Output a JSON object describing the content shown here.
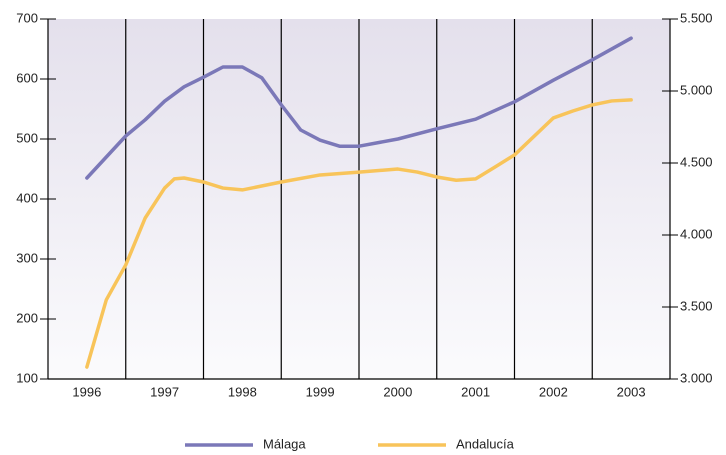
{
  "chart_data": {
    "type": "line",
    "xticks": [
      1996,
      1997,
      1998,
      1999,
      2000,
      2001,
      2002,
      2003
    ],
    "xlim": [
      1995.5,
      2003.5
    ],
    "ylim": [
      100,
      700
    ],
    "yticks": [
      100,
      200,
      300,
      400,
      500,
      600,
      700
    ],
    "y2lim": [
      3000,
      5500
    ],
    "y2ticks": [
      {
        "value": 3000,
        "label": "3.000"
      },
      {
        "value": 3500,
        "label": "3.500"
      },
      {
        "value": 4000,
        "label": "4.000"
      },
      {
        "value": 4500,
        "label": "4.500"
      },
      {
        "value": 5000,
        "label": "5.000"
      },
      {
        "value": 5500,
        "label": "5.500"
      }
    ],
    "legend": "bottom",
    "series": [
      {
        "name": "Málaga",
        "color": "#7b78b8",
        "x": [
          1996,
          1996.5,
          1996.75,
          1997,
          1997.25,
          1997.5,
          1997.75,
          1998,
          1998.25,
          1998.5,
          1998.75,
          1999,
          1999.25,
          1999.5,
          2000,
          2000.5,
          2001,
          2001.5,
          2002,
          2002.5,
          2003
        ],
        "values": [
          435,
          505,
          532,
          563,
          587,
          603,
          620,
          620,
          602,
          557,
          515,
          498,
          488,
          488,
          500,
          517,
          533,
          562,
          598,
          632,
          668
        ]
      },
      {
        "name": "Andalucía",
        "color": "#f8c45a",
        "axis": "y2",
        "x": [
          1996,
          1996.25,
          1996.5,
          1996.75,
          1997,
          1997.125,
          1997.25,
          1997.5,
          1997.75,
          1998,
          1998.5,
          1999,
          1999.5,
          2000,
          2000.25,
          2000.5,
          2000.75,
          2001,
          2001.25,
          2001.5,
          2002,
          2002.25,
          2002.5,
          2002.75,
          2003
        ],
        "values": [
          3083,
          3550,
          3792,
          4118,
          4326,
          4390,
          4396,
          4368,
          4326,
          4313,
          4368,
          4417,
          4437,
          4458,
          4437,
          4403,
          4380,
          4390,
          4472,
          4556,
          4813,
          4861,
          4903,
          4931,
          4938
        ]
      }
    ]
  }
}
